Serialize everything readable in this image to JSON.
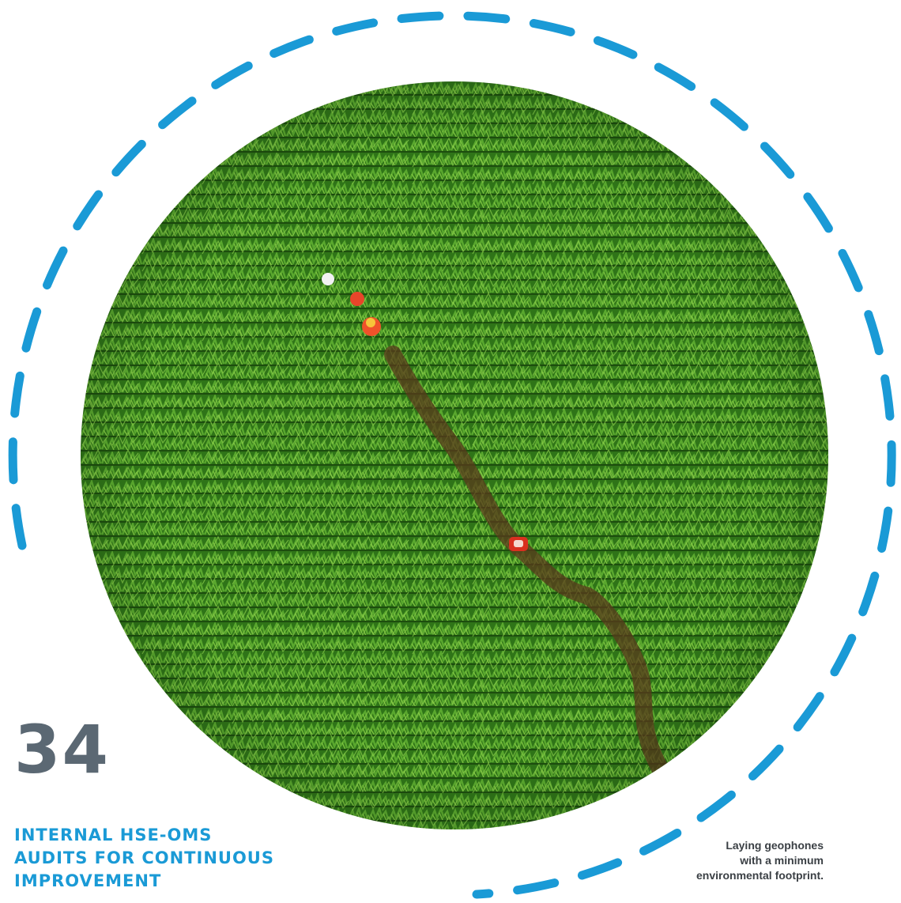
{
  "stat": {
    "number": "34",
    "label_lines": [
      "INTERNAL HSE-OMS",
      "AUDITS FOR CONTINUOUS",
      "IMPROVEMENT"
    ]
  },
  "caption": {
    "lines": [
      "Laying geophones",
      "with a minimum",
      "environmental footprint."
    ]
  },
  "photo": {
    "subject": "aerial view of crop field with workers laying geophones",
    "field_color": "#3d8a1f",
    "path_color": "#5a3a1c"
  },
  "colors": {
    "accent_blue": "#1a9ad6",
    "number_gray": "#5b6873",
    "caption_text": "#3a3f44"
  }
}
